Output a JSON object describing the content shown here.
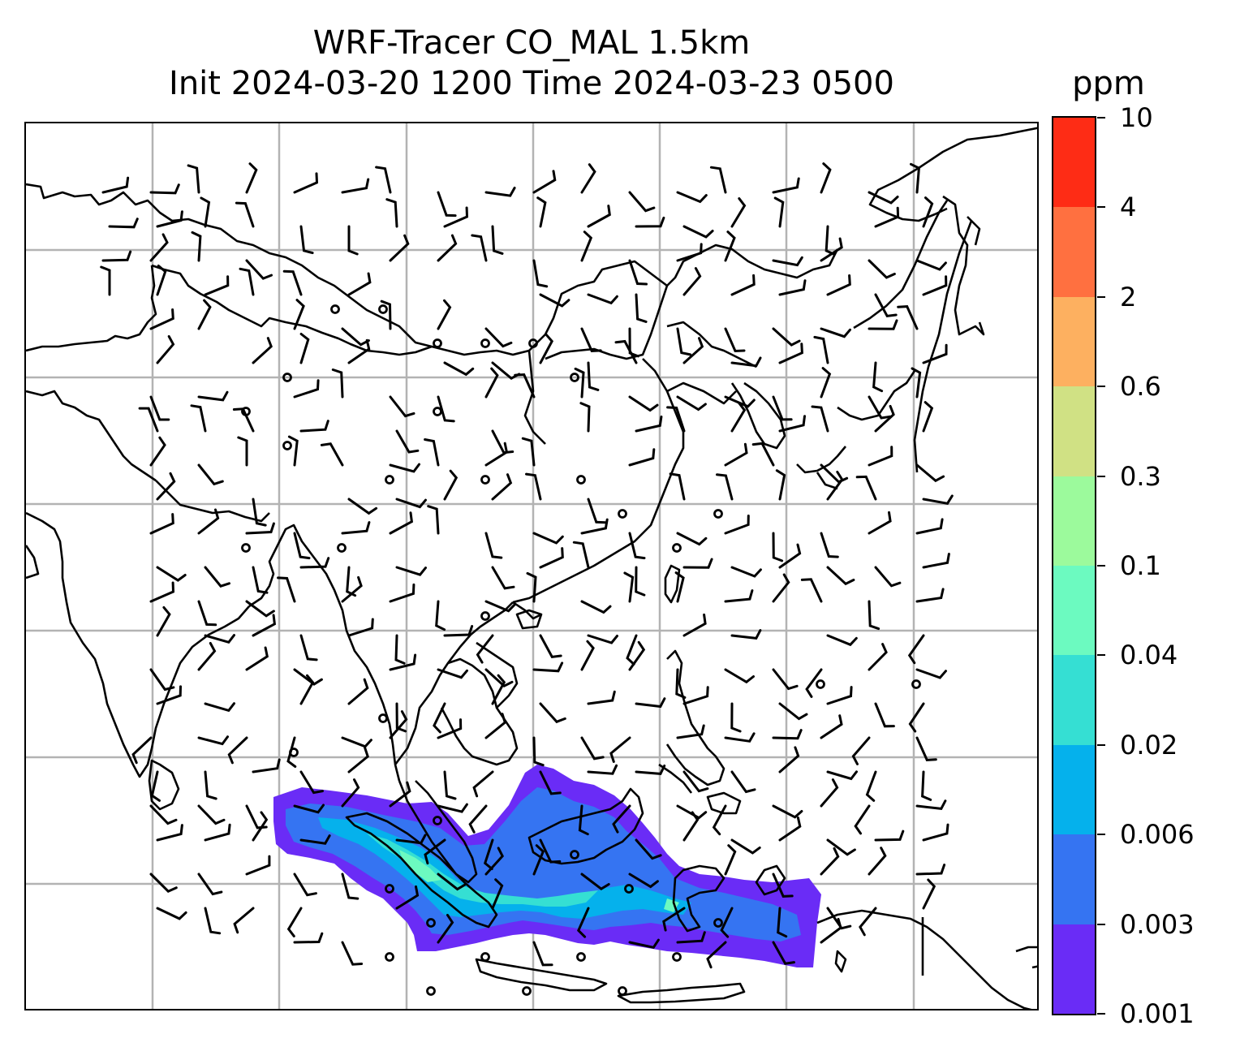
{
  "title": {
    "line1": "WRF-Tracer CO_MAL 1.5km",
    "line2": "Init 2024-03-20 1200 Time 2024-03-23 0500"
  },
  "colorbar": {
    "unit": "ppm",
    "levels": [
      "0.001",
      "0.003",
      "0.006",
      "0.02",
      "0.04",
      "0.1",
      "0.3",
      "0.6",
      "2",
      "4",
      "10"
    ],
    "colors": [
      "#6a2cf6",
      "#3574f2",
      "#05b1ec",
      "#35dfd3",
      "#6cfac0",
      "#9cfa9c",
      "#d0e184",
      "#fdb060",
      "#ff7040",
      "#fe2c15"
    ]
  },
  "map": {
    "gridlines": true,
    "coastline_color": "#000000",
    "tracer_plume_colors": [
      "#6a2cf6",
      "#3574f2",
      "#05b1ec",
      "#35dfd3",
      "#6cfac0"
    ],
    "wind_barbs": true,
    "calm_circles": true
  }
}
